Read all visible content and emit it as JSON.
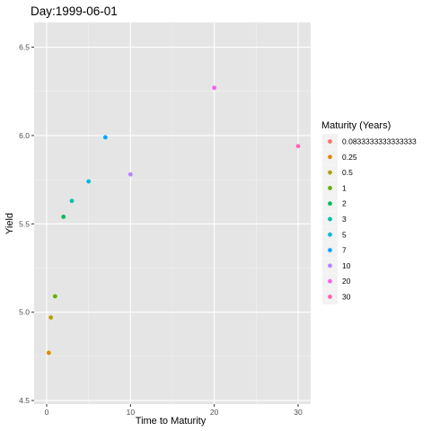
{
  "chart_data": {
    "type": "scatter",
    "title": "Day:1999-06-01",
    "xlabel": "Time to Maturity",
    "ylabel": "Yield",
    "xlim": [
      -1.5,
      31.5
    ],
    "ylim": [
      4.48,
      6.64
    ],
    "x_ticks": [
      0,
      10,
      20,
      30
    ],
    "y_ticks": [
      4.5,
      5.0,
      5.5,
      6.0,
      6.5
    ],
    "x_tick_labels": [
      "0",
      "10",
      "20",
      "30"
    ],
    "y_tick_labels": [
      "4.5",
      "5.0",
      "5.5",
      "6.0",
      "6.5"
    ],
    "grid": true,
    "legend_title": "Maturity (Years)",
    "legend_position": "right",
    "points": [
      {
        "label": "0.0833333333333333",
        "x": 0.0833333333333333,
        "y": null,
        "color": "#F8766D"
      },
      {
        "label": "0.25",
        "x": 0.25,
        "y": 4.77,
        "color": "#DB8E00"
      },
      {
        "label": "0.5",
        "x": 0.5,
        "y": 4.97,
        "color": "#AEA200"
      },
      {
        "label": "1",
        "x": 1,
        "y": 5.09,
        "color": "#64B200"
      },
      {
        "label": "2",
        "x": 2,
        "y": 5.54,
        "color": "#00BD5C"
      },
      {
        "label": "3",
        "x": 3,
        "y": 5.63,
        "color": "#00C1A7"
      },
      {
        "label": "5",
        "x": 5,
        "y": 5.74,
        "color": "#00BADE"
      },
      {
        "label": "7",
        "x": 7,
        "y": 5.99,
        "color": "#00A6FF"
      },
      {
        "label": "10",
        "x": 10,
        "y": 5.78,
        "color": "#B385FF"
      },
      {
        "label": "20",
        "x": 20,
        "y": 6.27,
        "color": "#EF67EB"
      },
      {
        "label": "30",
        "x": 30,
        "y": 5.94,
        "color": "#FF63B6"
      }
    ]
  },
  "colors": {
    "panel_background": "#E5E5E5",
    "grid_major": "#FFFFFF",
    "legend_key_background": "#F2F2F2"
  }
}
